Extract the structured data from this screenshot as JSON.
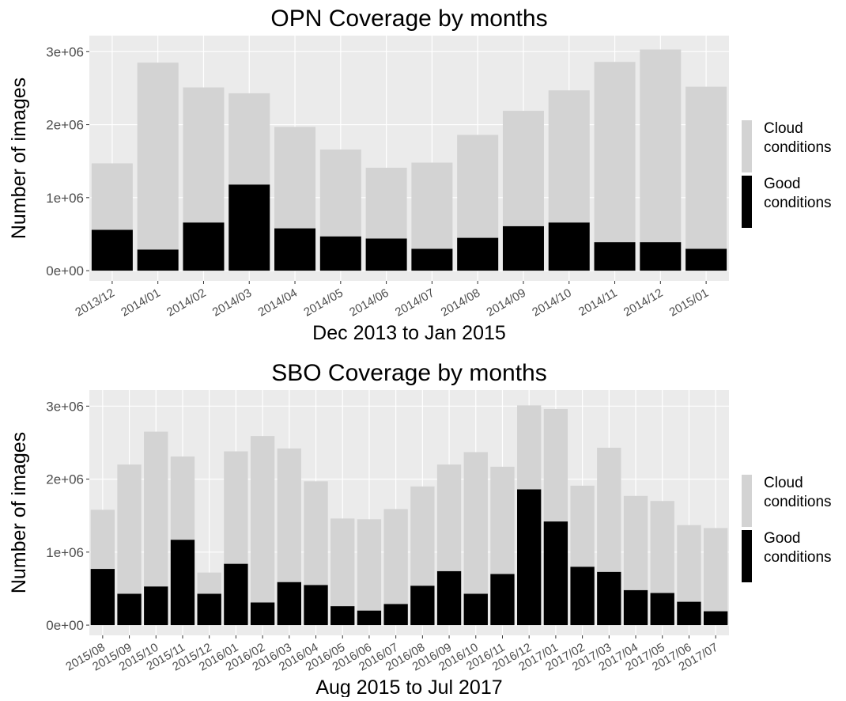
{
  "chart_data": [
    {
      "type": "stacked-bar",
      "title": "OPN Coverage by months",
      "x_label": "Dec 2013 to Jan 2015",
      "y_label": "Number of images",
      "categories": [
        "2013/12",
        "2014/01",
        "2014/02",
        "2014/03",
        "2014/04",
        "2014/05",
        "2014/06",
        "2014/07",
        "2014/08",
        "2014/09",
        "2014/10",
        "2014/11",
        "2014/12",
        "2015/01"
      ],
      "series": [
        {
          "name": "Cloud conditions",
          "color": "#d3d3d3",
          "values": [
            910000,
            2560000,
            1850000,
            1250000,
            1390000,
            1190000,
            970000,
            1180000,
            1410000,
            1580000,
            1810000,
            2470000,
            2640000,
            2220000
          ]
        },
        {
          "name": "Good conditions",
          "color": "#000000",
          "values": [
            560000,
            290000,
            660000,
            1180000,
            580000,
            470000,
            440000,
            300000,
            450000,
            610000,
            660000,
            390000,
            390000,
            300000
          ]
        }
      ],
      "ylim": [
        -140000,
        3220000
      ],
      "yticks": [
        {
          "value": 0,
          "label": "0e+00"
        },
        {
          "value": 1000000,
          "label": "1e+06"
        },
        {
          "value": 2000000,
          "label": "2e+06"
        },
        {
          "value": 3000000,
          "label": "3e+06"
        }
      ],
      "grid": true
    },
    {
      "type": "stacked-bar",
      "title": "SBO Coverage by months",
      "x_label": "Aug 2015 to Jul 2017",
      "y_label": "Number of images",
      "categories": [
        "2015/08",
        "2015/09",
        "2015/10",
        "2015/11",
        "2015/12",
        "2016/01",
        "2016/02",
        "2016/03",
        "2016/04",
        "2016/05",
        "2016/06",
        "2016/07",
        "2016/08",
        "2016/09",
        "2016/10",
        "2016/11",
        "2016/12",
        "2017/01",
        "2017/02",
        "2017/03",
        "2017/04",
        "2017/05",
        "2017/06",
        "2017/07"
      ],
      "series": [
        {
          "name": "Cloud conditions",
          "color": "#d3d3d3",
          "values": [
            810000,
            1770000,
            2120000,
            1140000,
            290000,
            1540000,
            2280000,
            1830000,
            1420000,
            1200000,
            1250000,
            1300000,
            1360000,
            1460000,
            1940000,
            1470000,
            1150000,
            1540000,
            1110000,
            1700000,
            1290000,
            1260000,
            1050000,
            1140000
          ]
        },
        {
          "name": "Good conditions",
          "color": "#000000",
          "values": [
            770000,
            430000,
            530000,
            1170000,
            430000,
            840000,
            310000,
            590000,
            550000,
            260000,
            200000,
            290000,
            540000,
            740000,
            430000,
            700000,
            1860000,
            1420000,
            800000,
            730000,
            480000,
            440000,
            320000,
            190000
          ]
        }
      ],
      "ylim": [
        -140000,
        3220000
      ],
      "yticks": [
        {
          "value": 0,
          "label": "0e+00"
        },
        {
          "value": 1000000,
          "label": "1e+06"
        },
        {
          "value": 2000000,
          "label": "2e+06"
        },
        {
          "value": 3000000,
          "label": "3e+06"
        }
      ],
      "grid": true
    }
  ]
}
